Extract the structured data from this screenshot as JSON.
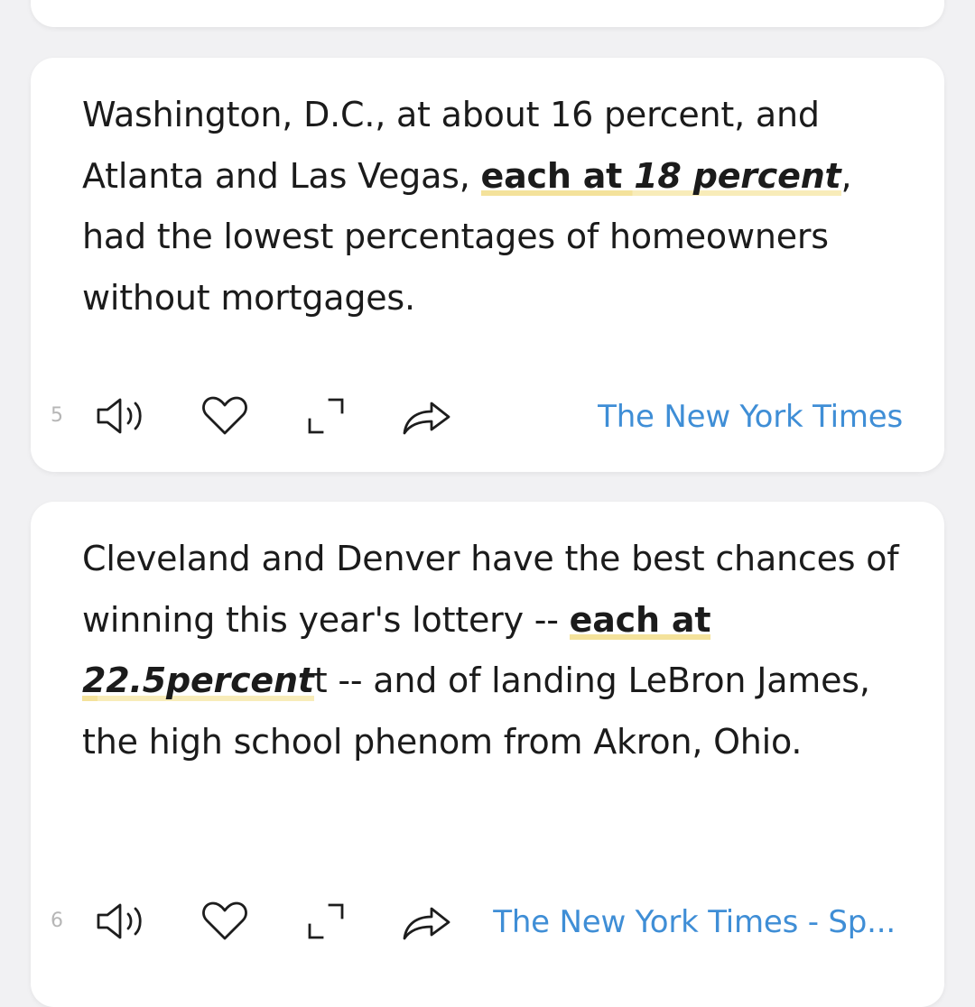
{
  "cards": [
    {
      "index": "5",
      "text_before": "Washington, D.C., at about 16 percent, and Atlanta and Las Vegas, ",
      "highlight_bold": "each at ",
      "highlight_italic": "18 percent",
      "text_after": ", had the lowest percentages of homeowners without mortgages.",
      "source": "The New York Times"
    },
    {
      "index": "6",
      "text_before": "Cleveland and Denver have the best chances of winning this year's lottery -- ",
      "highlight_bold": "each at ",
      "highlight_italic": "22.5percent",
      "text_after": "t -- and of landing LeBron James, the high school phenom from Akron, Ohio.",
      "source": "The New York Times - Sp..."
    }
  ],
  "icons": {
    "speak": "speaker-icon",
    "like": "heart-icon",
    "expand": "expand-icon",
    "share": "share-icon"
  },
  "colors": {
    "source_link": "#3f8ed6",
    "highlight": "#f4e29b",
    "text": "#1b1b1b",
    "index": "#b6b6b6",
    "background": "#f1f1f3"
  }
}
